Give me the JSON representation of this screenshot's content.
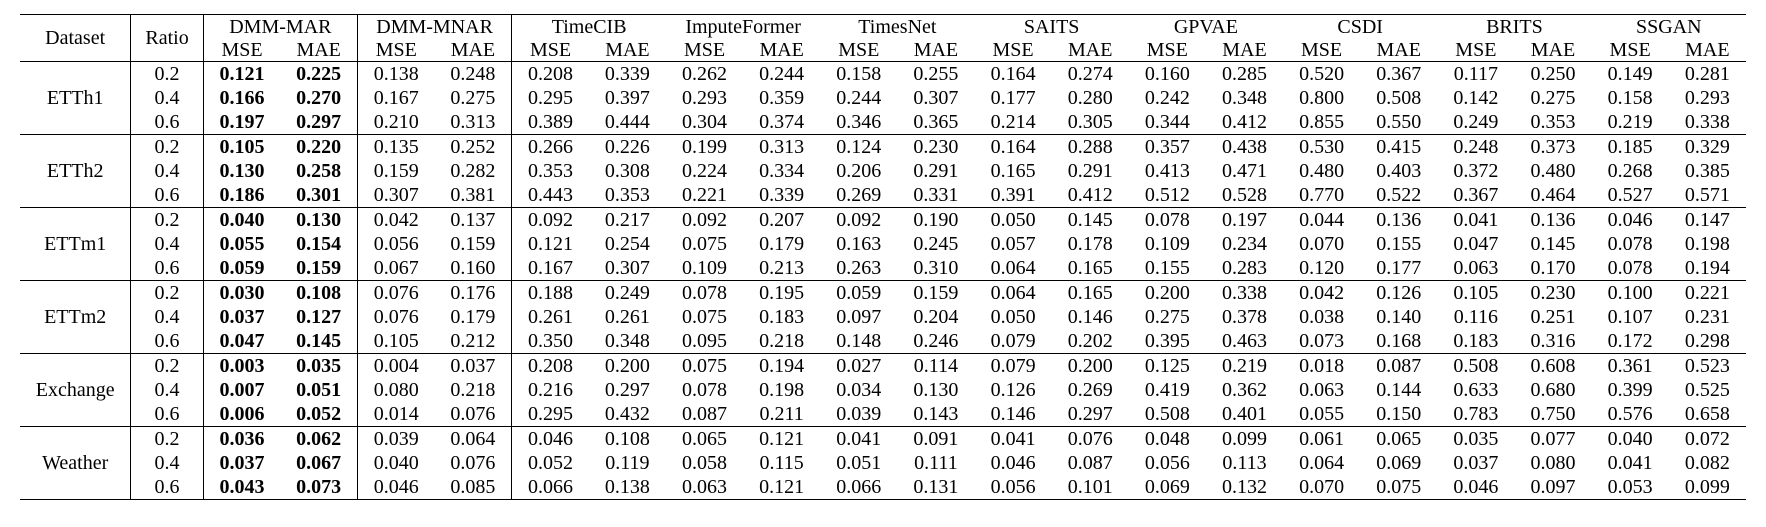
{
  "header": {
    "dataset": "Dataset",
    "ratio": "Ratio",
    "methods": [
      "DMM-MAR",
      "DMM-MNAR",
      "TimeCIB",
      "ImputeFormer",
      "TimesNet",
      "SAITS",
      "GPVAE",
      "CSDI",
      "BRITS",
      "SSGAN"
    ],
    "mse": "MSE",
    "mae": "MAE"
  },
  "groups": [
    {
      "name": "ETTh1",
      "rows": [
        {
          "ratio": "0.2",
          "values": [
            "0.121",
            "0.225",
            "0.138",
            "0.248",
            "0.208",
            "0.339",
            "0.262",
            "0.244",
            "0.158",
            "0.255",
            "0.164",
            "0.274",
            "0.160",
            "0.285",
            "0.520",
            "0.367",
            "0.117",
            "0.250",
            "0.149",
            "0.281"
          ]
        },
        {
          "ratio": "0.4",
          "values": [
            "0.166",
            "0.270",
            "0.167",
            "0.275",
            "0.295",
            "0.397",
            "0.293",
            "0.359",
            "0.244",
            "0.307",
            "0.177",
            "0.280",
            "0.242",
            "0.348",
            "0.800",
            "0.508",
            "0.142",
            "0.275",
            "0.158",
            "0.293"
          ]
        },
        {
          "ratio": "0.6",
          "values": [
            "0.197",
            "0.297",
            "0.210",
            "0.313",
            "0.389",
            "0.444",
            "0.304",
            "0.374",
            "0.346",
            "0.365",
            "0.214",
            "0.305",
            "0.344",
            "0.412",
            "0.855",
            "0.550",
            "0.249",
            "0.353",
            "0.219",
            "0.338"
          ]
        }
      ]
    },
    {
      "name": "ETTh2",
      "rows": [
        {
          "ratio": "0.2",
          "values": [
            "0.105",
            "0.220",
            "0.135",
            "0.252",
            "0.266",
            "0.226",
            "0.199",
            "0.313",
            "0.124",
            "0.230",
            "0.164",
            "0.288",
            "0.357",
            "0.438",
            "0.530",
            "0.415",
            "0.248",
            "0.373",
            "0.185",
            "0.329"
          ]
        },
        {
          "ratio": "0.4",
          "values": [
            "0.130",
            "0.258",
            "0.159",
            "0.282",
            "0.353",
            "0.308",
            "0.224",
            "0.334",
            "0.206",
            "0.291",
            "0.165",
            "0.291",
            "0.413",
            "0.471",
            "0.480",
            "0.403",
            "0.372",
            "0.480",
            "0.268",
            "0.385"
          ]
        },
        {
          "ratio": "0.6",
          "values": [
            "0.186",
            "0.301",
            "0.307",
            "0.381",
            "0.443",
            "0.353",
            "0.221",
            "0.339",
            "0.269",
            "0.331",
            "0.391",
            "0.412",
            "0.512",
            "0.528",
            "0.770",
            "0.522",
            "0.367",
            "0.464",
            "0.527",
            "0.571"
          ]
        }
      ]
    },
    {
      "name": "ETTm1",
      "rows": [
        {
          "ratio": "0.2",
          "values": [
            "0.040",
            "0.130",
            "0.042",
            "0.137",
            "0.092",
            "0.217",
            "0.092",
            "0.207",
            "0.092",
            "0.190",
            "0.050",
            "0.145",
            "0.078",
            "0.197",
            "0.044",
            "0.136",
            "0.041",
            "0.136",
            "0.046",
            "0.147"
          ]
        },
        {
          "ratio": "0.4",
          "values": [
            "0.055",
            "0.154",
            "0.056",
            "0.159",
            "0.121",
            "0.254",
            "0.075",
            "0.179",
            "0.163",
            "0.245",
            "0.057",
            "0.178",
            "0.109",
            "0.234",
            "0.070",
            "0.155",
            "0.047",
            "0.145",
            "0.078",
            "0.198"
          ]
        },
        {
          "ratio": "0.6",
          "values": [
            "0.059",
            "0.159",
            "0.067",
            "0.160",
            "0.167",
            "0.307",
            "0.109",
            "0.213",
            "0.263",
            "0.310",
            "0.064",
            "0.165",
            "0.155",
            "0.283",
            "0.120",
            "0.177",
            "0.063",
            "0.170",
            "0.078",
            "0.194"
          ]
        }
      ]
    },
    {
      "name": "ETTm2",
      "rows": [
        {
          "ratio": "0.2",
          "values": [
            "0.030",
            "0.108",
            "0.076",
            "0.176",
            "0.188",
            "0.249",
            "0.078",
            "0.195",
            "0.059",
            "0.159",
            "0.064",
            "0.165",
            "0.200",
            "0.338",
            "0.042",
            "0.126",
            "0.105",
            "0.230",
            "0.100",
            "0.221"
          ]
        },
        {
          "ratio": "0.4",
          "values": [
            "0.037",
            "0.127",
            "0.076",
            "0.179",
            "0.261",
            "0.261",
            "0.075",
            "0.183",
            "0.097",
            "0.204",
            "0.050",
            "0.146",
            "0.275",
            "0.378",
            "0.038",
            "0.140",
            "0.116",
            "0.251",
            "0.107",
            "0.231"
          ]
        },
        {
          "ratio": "0.6",
          "values": [
            "0.047",
            "0.145",
            "0.105",
            "0.212",
            "0.350",
            "0.348",
            "0.095",
            "0.218",
            "0.148",
            "0.246",
            "0.079",
            "0.202",
            "0.395",
            "0.463",
            "0.073",
            "0.168",
            "0.183",
            "0.316",
            "0.172",
            "0.298"
          ]
        }
      ]
    },
    {
      "name": "Exchange",
      "rows": [
        {
          "ratio": "0.2",
          "values": [
            "0.003",
            "0.035",
            "0.004",
            "0.037",
            "0.208",
            "0.200",
            "0.075",
            "0.194",
            "0.027",
            "0.114",
            "0.079",
            "0.200",
            "0.125",
            "0.219",
            "0.018",
            "0.087",
            "0.508",
            "0.608",
            "0.361",
            "0.523"
          ]
        },
        {
          "ratio": "0.4",
          "values": [
            "0.007",
            "0.051",
            "0.080",
            "0.218",
            "0.216",
            "0.297",
            "0.078",
            "0.198",
            "0.034",
            "0.130",
            "0.126",
            "0.269",
            "0.419",
            "0.362",
            "0.063",
            "0.144",
            "0.633",
            "0.680",
            "0.399",
            "0.525"
          ]
        },
        {
          "ratio": "0.6",
          "values": [
            "0.006",
            "0.052",
            "0.014",
            "0.076",
            "0.295",
            "0.432",
            "0.087",
            "0.211",
            "0.039",
            "0.143",
            "0.146",
            "0.297",
            "0.508",
            "0.401",
            "0.055",
            "0.150",
            "0.783",
            "0.750",
            "0.576",
            "0.658"
          ]
        }
      ]
    },
    {
      "name": "Weather",
      "rows": [
        {
          "ratio": "0.2",
          "values": [
            "0.036",
            "0.062",
            "0.039",
            "0.064",
            "0.046",
            "0.108",
            "0.065",
            "0.121",
            "0.041",
            "0.091",
            "0.041",
            "0.076",
            "0.048",
            "0.099",
            "0.061",
            "0.065",
            "0.035",
            "0.077",
            "0.040",
            "0.072"
          ]
        },
        {
          "ratio": "0.4",
          "values": [
            "0.037",
            "0.067",
            "0.040",
            "0.076",
            "0.052",
            "0.119",
            "0.058",
            "0.115",
            "0.051",
            "0.111",
            "0.046",
            "0.087",
            "0.056",
            "0.113",
            "0.064",
            "0.069",
            "0.037",
            "0.080",
            "0.041",
            "0.082"
          ]
        },
        {
          "ratio": "0.6",
          "values": [
            "0.043",
            "0.073",
            "0.046",
            "0.085",
            "0.066",
            "0.138",
            "0.063",
            "0.121",
            "0.066",
            "0.131",
            "0.056",
            "0.101",
            "0.069",
            "0.132",
            "0.070",
            "0.075",
            "0.046",
            "0.097",
            "0.053",
            "0.099"
          ]
        }
      ]
    }
  ],
  "bold_columns": [
    0,
    1
  ]
}
